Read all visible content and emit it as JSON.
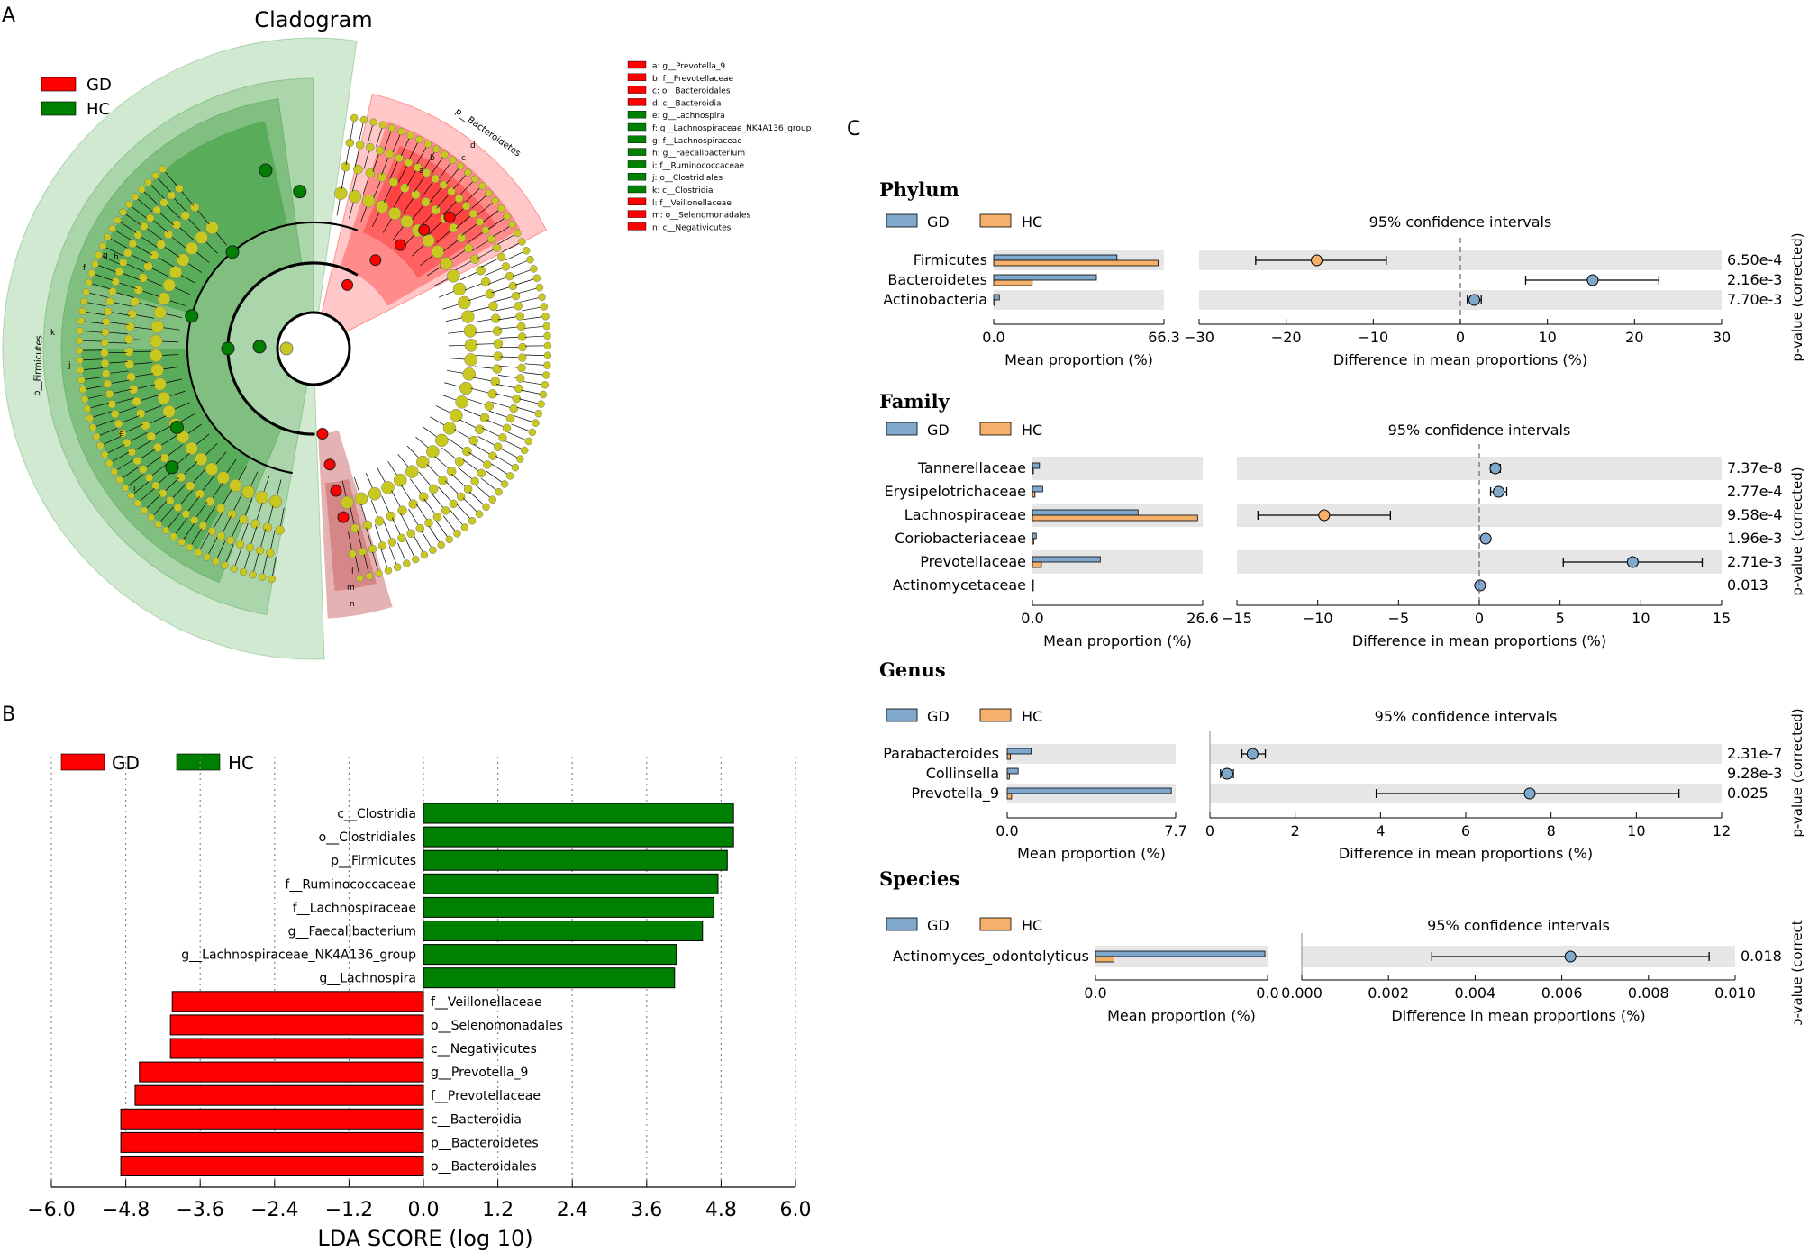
{
  "panels": {
    "a": "A",
    "b": "B",
    "c": "C"
  },
  "colors": {
    "gd_red": "#ff0000",
    "hc_green": "#008000",
    "gd_blue": "#7fa8cc",
    "hc_orange": "#f5b06b",
    "band": "#e6e6e6",
    "node_yellow": "#c8c81e"
  },
  "cladogram": {
    "title": "Cladogram",
    "legend": [
      {
        "label": "GD",
        "color": "#ff0000"
      },
      {
        "label": "HC",
        "color": "#008000"
      }
    ],
    "key": [
      {
        "text": "a: g__Prevotella_9",
        "color": "#ff0000"
      },
      {
        "text": "b: f__Prevotellaceae",
        "color": "#ff0000"
      },
      {
        "text": "c: o__Bacteroidales",
        "color": "#ff0000"
      },
      {
        "text": "d: c__Bacteroidia",
        "color": "#ff0000"
      },
      {
        "text": "e: g__Lachnospira",
        "color": "#008000"
      },
      {
        "text": "f: g__Lachnospiraceae_NK4A136_group",
        "color": "#008000"
      },
      {
        "text": "g: f__Lachnospiraceae",
        "color": "#008000"
      },
      {
        "text": "h: g__Faecalibacterium",
        "color": "#008000"
      },
      {
        "text": "i: f__Ruminococcaceae",
        "color": "#008000"
      },
      {
        "text": "j: o__Clostridiales",
        "color": "#008000"
      },
      {
        "text": "k: c__Clostridia",
        "color": "#008000"
      },
      {
        "text": "l: f__Veillonellaceae",
        "color": "#ff0000"
      },
      {
        "text": "m: o__Selenomonadales",
        "color": "#ff0000"
      },
      {
        "text": "n: c__Negativicutes",
        "color": "#ff0000"
      }
    ],
    "clade_labels": {
      "bacteroidetes": "p__Bacteroidetes",
      "firmicutes": "p__Firmicutes",
      "a": "a",
      "b": "b",
      "c": "c",
      "d": "d",
      "e": "e",
      "f": "f",
      "g": "g",
      "h": "h",
      "i": "i",
      "j": "j",
      "k": "k",
      "l": "l",
      "m": "m",
      "n": "n"
    }
  },
  "chart_data": [
    {
      "type": "bar",
      "id": "lda",
      "title": "",
      "xlabel": "LDA SCORE (log 10)",
      "xlim": [
        -6.0,
        6.0
      ],
      "xticks": [
        "−6.0",
        "−4.8",
        "−3.6",
        "−2.4",
        "−1.2",
        "0.0",
        "1.2",
        "2.4",
        "3.6",
        "4.8",
        "6.0"
      ],
      "legend": [
        {
          "label": "GD",
          "color": "#ff0000"
        },
        {
          "label": "HC",
          "color": "#008000"
        }
      ],
      "bars": [
        {
          "label": "c__Clostridia",
          "value": 5.0,
          "group": "HC"
        },
        {
          "label": "o__Clostridiales",
          "value": 5.0,
          "group": "HC"
        },
        {
          "label": "p__Firmicutes",
          "value": 4.9,
          "group": "HC"
        },
        {
          "label": "f__Ruminococcaceae",
          "value": 4.75,
          "group": "HC"
        },
        {
          "label": "f__Lachnospiraceae",
          "value": 4.68,
          "group": "HC"
        },
        {
          "label": "g__Faecalibacterium",
          "value": 4.5,
          "group": "HC"
        },
        {
          "label": "g__Lachnospiraceae_NK4A136_group",
          "value": 4.08,
          "group": "HC"
        },
        {
          "label": "g__Lachnospira",
          "value": 4.05,
          "group": "HC"
        },
        {
          "label": "f__Veillonellaceae",
          "value": -4.05,
          "group": "GD"
        },
        {
          "label": "o__Selenomonadales",
          "value": -4.08,
          "group": "GD"
        },
        {
          "label": "c__Negativicutes",
          "value": -4.08,
          "group": "GD"
        },
        {
          "label": "g__Prevotella_9",
          "value": -4.58,
          "group": "GD"
        },
        {
          "label": "f__Prevotellaceae",
          "value": -4.65,
          "group": "GD"
        },
        {
          "label": "c__Bacteroidia",
          "value": -4.88,
          "group": "GD"
        },
        {
          "label": "p__Bacteroidetes",
          "value": -4.88,
          "group": "GD"
        },
        {
          "label": "o__Bacteroidales",
          "value": -4.88,
          "group": "GD"
        }
      ]
    },
    {
      "type": "bar",
      "id": "phylum",
      "level": "Phylum",
      "legend": [
        {
          "label": "GD",
          "color": "#7fa8cc"
        },
        {
          "label": "HC",
          "color": "#f5b06b"
        }
      ],
      "ci_title": "95% confidence intervals",
      "mean_xlabel": "Mean proportion (%)",
      "diff_xlabel": "Difference in mean proportions (%)",
      "pval_label": "p-value (corrected)",
      "mean_ticks": [
        "0.0",
        "66.3"
      ],
      "mean_max": 66.3,
      "diff_ticks": [
        {
          "v": -30,
          "t": "−30"
        },
        {
          "v": -20,
          "t": "−20"
        },
        {
          "v": -10,
          "t": "−10"
        },
        {
          "v": 0,
          "t": "0"
        },
        {
          "v": 10,
          "t": "10"
        },
        {
          "v": 20,
          "t": "20"
        },
        {
          "v": 30,
          "t": "30"
        }
      ],
      "diff_lim": [
        -30,
        30
      ],
      "rows": [
        {
          "name": "Firmicutes",
          "gd": 48,
          "hc": 64,
          "diff": -16.5,
          "lo": -23.5,
          "hi": -8.5,
          "winner": "HC",
          "p": "6.50e-4"
        },
        {
          "name": "Bacteroidetes",
          "gd": 40,
          "hc": 15,
          "diff": 15.2,
          "lo": 7.5,
          "hi": 22.8,
          "winner": "GD",
          "p": "2.16e-3"
        },
        {
          "name": "Actinobacteria",
          "gd": 2.2,
          "hc": 0.4,
          "diff": 1.6,
          "lo": 0.8,
          "hi": 2.4,
          "winner": "GD",
          "p": "7.70e-3"
        }
      ]
    },
    {
      "type": "bar",
      "id": "family",
      "level": "Family",
      "legend": [
        {
          "label": "GD",
          "color": "#7fa8cc"
        },
        {
          "label": "HC",
          "color": "#f5b06b"
        }
      ],
      "ci_title": "95% confidence intervals",
      "mean_xlabel": "Mean proportion (%)",
      "diff_xlabel": "Difference in mean proportions (%)",
      "pval_label": "p-value (corrected)",
      "mean_ticks": [
        "0.0",
        "26.6"
      ],
      "mean_max": 26.6,
      "diff_ticks": [
        {
          "v": -15,
          "t": "−15"
        },
        {
          "v": -10,
          "t": "−10"
        },
        {
          "v": -5,
          "t": "−5"
        },
        {
          "v": 0,
          "t": "0"
        },
        {
          "v": 5,
          "t": "5"
        },
        {
          "v": 10,
          "t": "10"
        },
        {
          "v": 15,
          "t": "15"
        }
      ],
      "diff_lim": [
        -15,
        15
      ],
      "rows": [
        {
          "name": "Tannerellaceae",
          "gd": 1.1,
          "hc": 0.1,
          "diff": 1.0,
          "lo": 0.7,
          "hi": 1.3,
          "winner": "GD",
          "p": "7.37e-8"
        },
        {
          "name": "Erysipelotrichaceae",
          "gd": 1.6,
          "hc": 0.4,
          "diff": 1.2,
          "lo": 0.7,
          "hi": 1.7,
          "winner": "GD",
          "p": "2.77e-4"
        },
        {
          "name": "Lachnospiraceae",
          "gd": 16.5,
          "hc": 25.8,
          "diff": -9.6,
          "lo": -13.7,
          "hi": -5.5,
          "winner": "HC",
          "p": "9.58e-4"
        },
        {
          "name": "Coriobacteriaceae",
          "gd": 0.6,
          "hc": 0.2,
          "diff": 0.4,
          "lo": 0.2,
          "hi": 0.6,
          "winner": "GD",
          "p": "1.96e-3"
        },
        {
          "name": "Prevotellaceae",
          "gd": 10.6,
          "hc": 1.4,
          "diff": 9.5,
          "lo": 5.2,
          "hi": 13.8,
          "winner": "GD",
          "p": "2.71e-3"
        },
        {
          "name": "Actinomycetaceae",
          "gd": 0.1,
          "hc": 0.05,
          "diff": 0.05,
          "lo": 0.0,
          "hi": 0.1,
          "winner": "GD",
          "p": "0.013"
        }
      ]
    },
    {
      "type": "bar",
      "id": "genus",
      "level": "Genus",
      "legend": [
        {
          "label": "GD",
          "color": "#7fa8cc"
        },
        {
          "label": "HC",
          "color": "#f5b06b"
        }
      ],
      "ci_title": "95% confidence intervals",
      "mean_xlabel": "Mean proportion (%)",
      "diff_xlabel": "Difference in mean proportions (%)",
      "pval_label": "p-value (corrected)",
      "mean_ticks": [
        "0.0",
        "7.7"
      ],
      "mean_max": 7.7,
      "diff_ticks": [
        {
          "v": 0,
          "t": "0"
        },
        {
          "v": 2,
          "t": "2"
        },
        {
          "v": 4,
          "t": "4"
        },
        {
          "v": 6,
          "t": "6"
        },
        {
          "v": 8,
          "t": "8"
        },
        {
          "v": 10,
          "t": "10"
        },
        {
          "v": 12,
          "t": "12"
        }
      ],
      "diff_lim": [
        0,
        12
      ],
      "rows": [
        {
          "name": "Parabacteroides",
          "gd": 1.1,
          "hc": 0.15,
          "diff": 1.0,
          "lo": 0.75,
          "hi": 1.3,
          "winner": "GD",
          "p": "2.31e-7"
        },
        {
          "name": "Collinsella",
          "gd": 0.5,
          "hc": 0.1,
          "diff": 0.4,
          "lo": 0.25,
          "hi": 0.55,
          "winner": "GD",
          "p": "9.28e-3"
        },
        {
          "name": "Prevotella_9",
          "gd": 7.5,
          "hc": 0.2,
          "diff": 7.5,
          "lo": 3.9,
          "hi": 11.0,
          "winner": "GD",
          "p": "0.025"
        }
      ]
    },
    {
      "type": "bar",
      "id": "species",
      "level": "Species",
      "legend": [
        {
          "label": "GD",
          "color": "#7fa8cc"
        },
        {
          "label": "HC",
          "color": "#f5b06b"
        }
      ],
      "ci_title": "95% confidence intervals",
      "mean_xlabel": "Mean proportion (%)",
      "diff_xlabel": "Difference in mean proportions (%)",
      "pval_label": "ɔ-value (correct",
      "mean_ticks": [
        "0.0",
        "0.0"
      ],
      "mean_max": 0.0065,
      "diff_ticks": [
        {
          "v": 0,
          "t": "0.000"
        },
        {
          "v": 0.002,
          "t": "0.002"
        },
        {
          "v": 0.004,
          "t": "0.004"
        },
        {
          "v": 0.006,
          "t": "0.006"
        },
        {
          "v": 0.008,
          "t": "0.008"
        },
        {
          "v": 0.01,
          "t": "0.010"
        }
      ],
      "diff_lim": [
        0,
        0.01
      ],
      "rows": [
        {
          "name": "Actinomyces_odontolyticus",
          "gd": 0.0064,
          "hc": 0.0007,
          "diff": 0.0062,
          "lo": 0.003,
          "hi": 0.0094,
          "winner": "GD",
          "p": "0.018"
        }
      ]
    }
  ]
}
